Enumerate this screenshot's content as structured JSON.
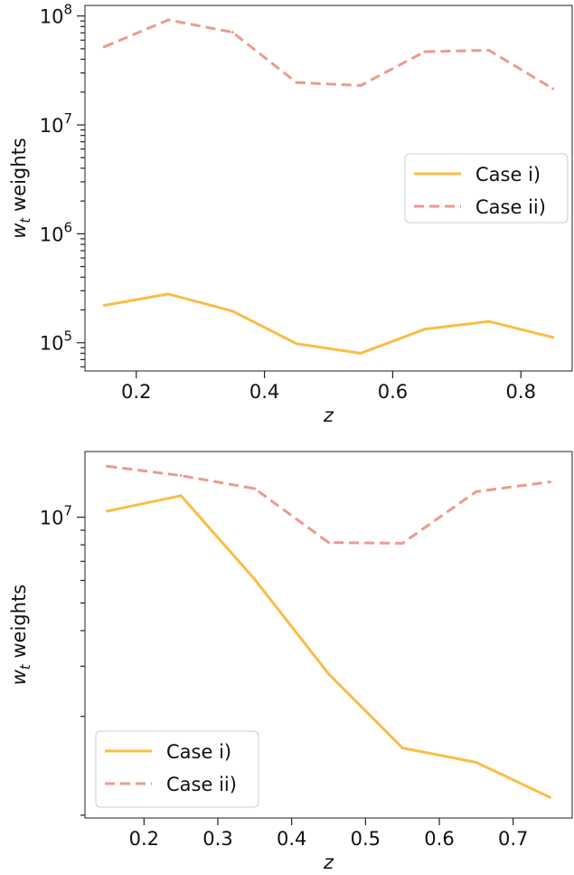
{
  "colors": {
    "case_i": "#FBBC45",
    "case_ii": "#EE9A8D"
  },
  "chart_data": [
    {
      "type": "line",
      "title": "",
      "xlabel": "z",
      "ylabel": "w_t weights",
      "ylabel_main": "w",
      "ylabel_sub": "t",
      "ylabel_rest": " weights",
      "yscale": "log",
      "xlim": [
        0.12,
        0.88
      ],
      "ylim": [
        55000,
        125000000
      ],
      "xticks": [
        0.2,
        0.4,
        0.6,
        0.8
      ],
      "xtick_labels": [
        "0.2",
        "0.4",
        "0.6",
        "0.8"
      ],
      "yticks": [
        100000,
        1000000,
        10000000,
        100000000
      ],
      "ytick_labels": [
        {
          "base": "10",
          "exp": "5"
        },
        {
          "base": "10",
          "exp": "6"
        },
        {
          "base": "10",
          "exp": "7"
        },
        {
          "base": "10",
          "exp": "8"
        }
      ],
      "grid": false,
      "legend_position": "center-right",
      "x": [
        0.15,
        0.25,
        0.35,
        0.45,
        0.55,
        0.65,
        0.75,
        0.85
      ],
      "series": [
        {
          "name": "Case i)",
          "style": "solid",
          "values": [
            220000,
            280000,
            195000,
            98000,
            80000,
            133000,
            157000,
            112000
          ]
        },
        {
          "name": "Case ii)",
          "style": "dashed",
          "values": [
            52000000,
            92000000,
            71000000,
            24500000,
            23000000,
            47000000,
            48500000,
            21500000
          ]
        }
      ]
    },
    {
      "type": "line",
      "title": "",
      "xlabel": "z",
      "ylabel": "w_t weights",
      "ylabel_main": "w",
      "ylabel_sub": "t",
      "ylabel_rest": " weights",
      "yscale": "log",
      "xlim": [
        0.12,
        0.78
      ],
      "ylim": [
        880000,
        17000000
      ],
      "xticks": [
        0.2,
        0.3,
        0.4,
        0.5,
        0.6,
        0.7
      ],
      "xtick_labels": [
        "0.2",
        "0.3",
        "0.4",
        "0.5",
        "0.6",
        "0.7"
      ],
      "yticks": [
        10000000
      ],
      "ytick_labels": [
        {
          "base": "10",
          "exp": "7"
        }
      ],
      "grid": false,
      "legend_position": "lower-left",
      "x": [
        0.15,
        0.25,
        0.35,
        0.45,
        0.55,
        0.65,
        0.75
      ],
      "series": [
        {
          "name": "Case i)",
          "style": "solid",
          "values": [
            10500000,
            11900000,
            6050000,
            2820000,
            1550000,
            1380000,
            1040000
          ]
        },
        {
          "name": "Case ii)",
          "style": "dashed",
          "values": [
            15100000,
            14000000,
            12600000,
            8150000,
            8100000,
            12300000,
            13300000
          ]
        }
      ]
    }
  ]
}
